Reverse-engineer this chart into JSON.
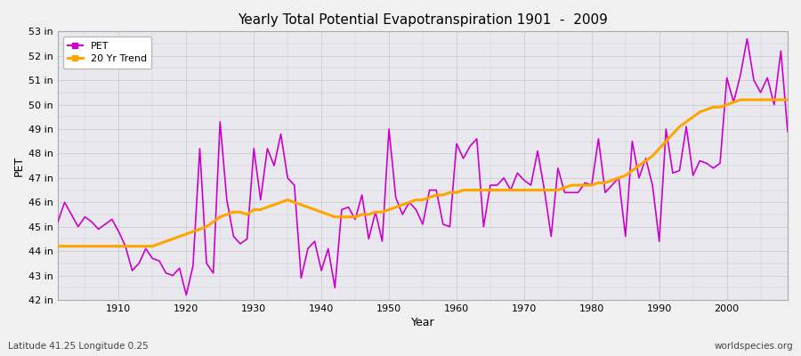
{
  "title": "Yearly Total Potential Evapotranspiration 1901  -  2009",
  "xlabel": "Year",
  "ylabel": "PET",
  "subtitle": "Latitude 41.25 Longitude 0.25",
  "watermark": "worldspecies.org",
  "pet_color": "#CC00CC",
  "trend_color": "#FFA500",
  "background_color": "#F0F0F0",
  "plot_bg_color": "#E8E8EE",
  "grid_color": "#CCCCCC",
  "ylim": [
    42,
    53
  ],
  "yticks": [
    42,
    43,
    44,
    45,
    46,
    47,
    48,
    49,
    50,
    51,
    52,
    53
  ],
  "ytick_labels": [
    "42 in",
    "43 in",
    "44 in",
    "45 in",
    "46 in",
    "47 in",
    "48 in",
    "49 in",
    "50 in",
    "51 in",
    "52 in",
    "53 in"
  ],
  "xlim": [
    1901,
    2009
  ],
  "xticks": [
    1910,
    1920,
    1930,
    1940,
    1950,
    1960,
    1970,
    1980,
    1990,
    2000
  ],
  "years": [
    1901,
    1902,
    1903,
    1904,
    1905,
    1906,
    1907,
    1908,
    1909,
    1910,
    1911,
    1912,
    1913,
    1914,
    1915,
    1916,
    1917,
    1918,
    1919,
    1920,
    1921,
    1922,
    1923,
    1924,
    1925,
    1926,
    1927,
    1928,
    1929,
    1930,
    1931,
    1932,
    1933,
    1934,
    1935,
    1936,
    1937,
    1938,
    1939,
    1940,
    1941,
    1942,
    1943,
    1944,
    1945,
    1946,
    1947,
    1948,
    1949,
    1950,
    1951,
    1952,
    1953,
    1954,
    1955,
    1956,
    1957,
    1958,
    1959,
    1960,
    1961,
    1962,
    1963,
    1964,
    1965,
    1966,
    1967,
    1968,
    1969,
    1970,
    1971,
    1972,
    1973,
    1974,
    1975,
    1976,
    1977,
    1978,
    1979,
    1980,
    1981,
    1982,
    1983,
    1984,
    1985,
    1986,
    1987,
    1988,
    1989,
    1990,
    1991,
    1992,
    1993,
    1994,
    1995,
    1996,
    1997,
    1998,
    1999,
    2000,
    2001,
    2002,
    2003,
    2004,
    2005,
    2006,
    2007,
    2008,
    2009
  ],
  "pet_values": [
    45.2,
    46.0,
    45.5,
    45.0,
    45.4,
    45.2,
    44.9,
    45.1,
    45.3,
    44.8,
    44.2,
    43.2,
    43.5,
    44.1,
    43.7,
    43.6,
    43.1,
    43.0,
    43.3,
    42.2,
    43.4,
    48.2,
    43.5,
    43.1,
    49.3,
    46.1,
    44.6,
    44.3,
    44.5,
    48.2,
    46.1,
    48.2,
    47.5,
    48.8,
    47.0,
    46.7,
    42.9,
    44.1,
    44.4,
    43.2,
    44.1,
    42.5,
    45.7,
    45.8,
    45.3,
    46.3,
    44.5,
    45.6,
    44.4,
    49.0,
    46.2,
    45.5,
    46.0,
    45.7,
    45.1,
    46.5,
    46.5,
    45.1,
    45.0,
    48.4,
    47.8,
    48.3,
    48.6,
    45.0,
    46.7,
    46.7,
    47.0,
    46.5,
    47.2,
    46.9,
    46.7,
    48.1,
    46.5,
    44.6,
    47.4,
    46.4,
    46.4,
    46.4,
    46.8,
    46.7,
    48.6,
    46.4,
    46.7,
    47.0,
    44.6,
    48.5,
    47.0,
    47.8,
    46.7,
    44.4,
    49.0,
    47.2,
    47.3,
    49.1,
    47.1,
    47.7,
    47.6,
    47.4,
    47.6,
    51.1,
    50.1,
    51.2,
    52.7,
    51.0,
    50.5,
    51.1,
    50.0,
    52.2,
    48.9
  ],
  "trend_values": [
    44.2,
    44.2,
    44.2,
    44.2,
    44.2,
    44.2,
    44.2,
    44.2,
    44.2,
    44.2,
    44.2,
    44.2,
    44.2,
    44.2,
    44.2,
    44.3,
    44.4,
    44.5,
    44.6,
    44.7,
    44.8,
    44.9,
    45.0,
    45.2,
    45.4,
    45.5,
    45.6,
    45.6,
    45.5,
    45.7,
    45.7,
    45.8,
    45.9,
    46.0,
    46.1,
    46.0,
    45.9,
    45.8,
    45.7,
    45.6,
    45.5,
    45.4,
    45.4,
    45.4,
    45.4,
    45.5,
    45.5,
    45.6,
    45.6,
    45.7,
    45.8,
    45.9,
    46.0,
    46.1,
    46.1,
    46.2,
    46.3,
    46.3,
    46.4,
    46.4,
    46.5,
    46.5,
    46.5,
    46.5,
    46.5,
    46.5,
    46.5,
    46.5,
    46.5,
    46.5,
    46.5,
    46.5,
    46.5,
    46.5,
    46.5,
    46.6,
    46.7,
    46.7,
    46.7,
    46.7,
    46.8,
    46.8,
    46.9,
    47.0,
    47.1,
    47.3,
    47.5,
    47.7,
    47.9,
    48.2,
    48.5,
    48.8,
    49.1,
    49.3,
    49.5,
    49.7,
    49.8,
    49.9,
    49.9,
    50.0,
    50.1,
    50.2,
    50.2,
    50.2,
    50.2,
    50.2,
    50.2,
    50.2,
    50.2
  ]
}
